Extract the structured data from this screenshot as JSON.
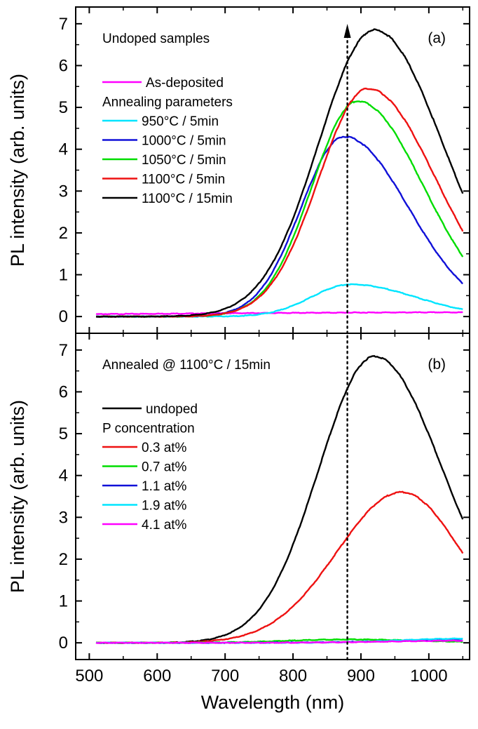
{
  "chart_data": [
    {
      "type": "line",
      "panel_label": "(a)",
      "title": "Undoped samples",
      "xlabel": "Wavelength (nm)",
      "ylabel": "PL intensity (arb. units)",
      "xlim": [
        480,
        1060
      ],
      "ylim": [
        -0.4,
        7.4
      ],
      "xticks": [
        500,
        600,
        700,
        800,
        900,
        1000
      ],
      "yticks": [
        0,
        1,
        2,
        3,
        4,
        5,
        6,
        7
      ],
      "legend_position": "top-left",
      "legend_group_heading": "Annealing parameters",
      "marker_line": {
        "x": 880,
        "style": "dotted",
        "arrow": "up"
      },
      "series": [
        {
          "name": "As-deposited",
          "color": "#ff00ff",
          "in_group": false,
          "peak_x": 1050,
          "peak_y": 0.1,
          "width_left": 400,
          "width_right": 100,
          "baseline": 0.03,
          "x_start": 510,
          "x_end": 1050,
          "y_start": 0.03,
          "y_end": 0.1
        },
        {
          "name": "950°C / 5min",
          "color": "#00e5ff",
          "in_group": true,
          "peak_x": 885,
          "peak_y": 0.77,
          "width_left": 58,
          "width_right": 95,
          "baseline": 0.0,
          "x_start": 510,
          "x_end": 1050,
          "y_start": 0.0,
          "y_end": 0.25
        },
        {
          "name": "1000°C / 5min",
          "color": "#1010d8",
          "in_group": true,
          "peak_x": 875,
          "peak_y": 4.3,
          "width_left": 63,
          "width_right": 95,
          "baseline": 0.0,
          "x_start": 510,
          "x_end": 1050,
          "y_start": 0.0,
          "y_end": 0.48
        },
        {
          "name": "1050°C / 5min",
          "color": "#00dd00",
          "in_group": true,
          "peak_x": 895,
          "peak_y": 5.15,
          "width_left": 67,
          "width_right": 97,
          "baseline": 0.0,
          "x_start": 510,
          "x_end": 1050,
          "y_start": 0.0,
          "y_end": 0.72
        },
        {
          "name": "1100°C / 5min",
          "color": "#ee1111",
          "in_group": true,
          "peak_x": 910,
          "peak_y": 5.45,
          "width_left": 72,
          "width_right": 100,
          "baseline": 0.0,
          "x_start": 510,
          "x_end": 1050,
          "y_start": 0.0,
          "y_end": 1.15
        },
        {
          "name": "1100°C / 15min",
          "color": "#000000",
          "in_group": true,
          "peak_x": 920,
          "peak_y": 6.85,
          "width_left": 82,
          "width_right": 100,
          "baseline": 0.0,
          "x_start": 510,
          "x_end": 1050,
          "y_start": 0.0,
          "y_end": 1.8
        }
      ]
    },
    {
      "type": "line",
      "panel_label": "(b)",
      "title": "Annealed @ 1100°C / 15min",
      "xlabel": "Wavelength (nm)",
      "ylabel": "PL intensity (arb. units)",
      "xlim": [
        480,
        1060
      ],
      "ylim": [
        -0.4,
        7.4
      ],
      "xticks": [
        500,
        600,
        700,
        800,
        900,
        1000
      ],
      "yticks": [
        0,
        1,
        2,
        3,
        4,
        5,
        6,
        7
      ],
      "legend_position": "top-left",
      "legend_group_heading": "P concentration",
      "marker_line": {
        "x": 880,
        "style": "dotted",
        "arrow": "none"
      },
      "series": [
        {
          "name": "undoped",
          "color": "#000000",
          "in_group": false,
          "peak_x": 920,
          "peak_y": 6.85,
          "width_left": 82,
          "width_right": 100,
          "baseline": 0.0,
          "x_start": 510,
          "x_end": 1050,
          "y_start": 0.0,
          "y_end": 1.8
        },
        {
          "name": "0.3 at%",
          "color": "#ee1111",
          "in_group": true,
          "peak_x": 960,
          "peak_y": 3.6,
          "width_left": 95,
          "width_right": 88,
          "baseline": 0.0,
          "x_start": 510,
          "x_end": 1050,
          "y_start": 0.0,
          "y_end": 1.3
        },
        {
          "name": "0.7 at%",
          "color": "#00dd00",
          "in_group": true,
          "peak_x": 880,
          "peak_y": 0.08,
          "width_left": 90,
          "width_right": 110,
          "baseline": 0.0,
          "x_start": 510,
          "x_end": 1050,
          "y_start": 0.0,
          "y_end": 0.04
        },
        {
          "name": "1.1 at%",
          "color": "#1010d8",
          "in_group": true,
          "peak_x": 1050,
          "peak_y": 0.06,
          "width_left": 120,
          "width_right": 60,
          "baseline": 0.0,
          "x_start": 510,
          "x_end": 1050,
          "y_start": 0.0,
          "y_end": 0.06
        },
        {
          "name": "1.9 at%",
          "color": "#00e5ff",
          "in_group": true,
          "peak_x": 1050,
          "peak_y": 0.1,
          "width_left": 90,
          "width_right": 60,
          "baseline": 0.0,
          "x_start": 510,
          "x_end": 1050,
          "y_start": 0.0,
          "y_end": 0.1
        },
        {
          "name": "4.1 at%",
          "color": "#ff00ff",
          "in_group": true,
          "peak_x": 1050,
          "peak_y": 0.05,
          "width_left": 110,
          "width_right": 60,
          "baseline": 0.0,
          "x_start": 510,
          "x_end": 1050,
          "y_start": 0.0,
          "y_end": 0.05
        }
      ]
    }
  ]
}
